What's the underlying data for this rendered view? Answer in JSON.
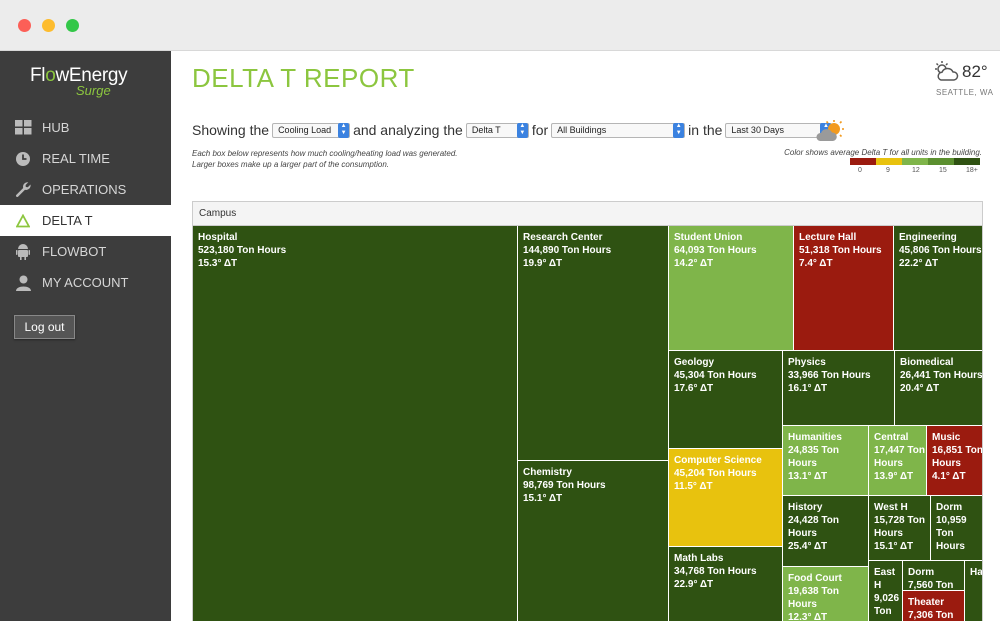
{
  "window": {
    "controls": [
      "close",
      "minimize",
      "zoom"
    ]
  },
  "sidebar": {
    "logo_prefix": "Fl",
    "logo_o": "o",
    "logo_suffix": "wEnergy",
    "logo_sub": "Surge",
    "items": [
      {
        "label": "HUB",
        "icon": "grid-icon",
        "active": false
      },
      {
        "label": "REAL TIME",
        "icon": "clock-icon",
        "active": false
      },
      {
        "label": "OPERATIONS",
        "icon": "wrench-icon",
        "active": false
      },
      {
        "label": "DELTA T",
        "icon": "delta-icon",
        "active": true
      },
      {
        "label": "FLOWBOT",
        "icon": "android-icon",
        "active": false
      },
      {
        "label": "MY ACCOUNT",
        "icon": "user-icon",
        "active": false
      }
    ],
    "logout_label": "Log out"
  },
  "header": {
    "title": "DELTA T REPORT",
    "weather": {
      "temp": "82°",
      "location": "SEATTLE, WA",
      "icon": "partly-cloudy-icon"
    }
  },
  "controls": {
    "showing_label": "Showing the",
    "load_value": "Cooling Load",
    "analyzing_label": "and analyzing the",
    "metric_value": "Delta T",
    "for_label": "for",
    "buildings_value": "All Buildings",
    "in_the_label": "in the",
    "period_value": "Last 30 Days",
    "weather_icon": "sun-cloud-icon"
  },
  "description": {
    "line1": "Each box below represents how much cooling/heating load was generated.",
    "line2": "Larger boxes make up a larger part of the consumption."
  },
  "legend": {
    "text": "Color shows average Delta T for all units in the building.",
    "colors": [
      "#9b1b0f",
      "#e8c20e",
      "#7fb54a",
      "#5b8f2f",
      "#2f5212"
    ],
    "ticks": [
      "0",
      "9",
      "12",
      "15",
      "18+"
    ]
  },
  "treemap": {
    "header": "Campus",
    "colors": {
      "dark": "#2f5212",
      "medium": "#5b8f2f",
      "light": "#7fb54a",
      "red": "#9b1b0f",
      "yellow": "#e8c20e"
    },
    "buildings": [
      {
        "name": "Hospital",
        "value": "523,180 Ton Hours",
        "delta": "15.3° ΔT",
        "color": "dark"
      },
      {
        "name": "Research Center",
        "value": "144,890 Ton Hours",
        "delta": "19.9° ΔT",
        "color": "dark"
      },
      {
        "name": "Chemistry",
        "value": "98,769 Ton Hours",
        "delta": "15.1° ΔT",
        "color": "dark"
      },
      {
        "name": "Student Union",
        "value": "64,093 Ton Hours",
        "delta": "14.2° ΔT",
        "color": "light"
      },
      {
        "name": "Lecture Hall",
        "value": "51,318 Ton Hours",
        "delta": "7.4° ΔT",
        "color": "red"
      },
      {
        "name": "Engineering",
        "value": "45,806 Ton Hours",
        "delta": "22.2° ΔT",
        "color": "dark"
      },
      {
        "name": "Geology",
        "value": "45,304 Ton Hours",
        "delta": "17.6° ΔT",
        "color": "dark"
      },
      {
        "name": "Physics",
        "value": "33,966 Ton Hours",
        "delta": "16.1° ΔT",
        "color": "dark"
      },
      {
        "name": "Biomedical",
        "value": "26,441 Ton Hours",
        "delta": "20.4° ΔT",
        "color": "dark"
      },
      {
        "name": "Computer Science",
        "value": "45,204 Ton Hours",
        "delta": "11.5° ΔT",
        "color": "yellow"
      },
      {
        "name": "Humanities",
        "value": "24,835 Ton Hours",
        "delta": "13.1° ΔT",
        "color": "light"
      },
      {
        "name": "Central",
        "value": "17,447 Ton Hours",
        "delta": "13.9° ΔT",
        "color": "light"
      },
      {
        "name": "Music",
        "value": "16,851 Ton Hours",
        "delta": "4.1° ΔT",
        "color": "red"
      },
      {
        "name": "History",
        "value": "24,428 Ton Hours",
        "delta": "25.4° ΔT",
        "color": "dark"
      },
      {
        "name": "West H",
        "value": "15,728 Ton Hours",
        "delta": "15.1° ΔT",
        "color": "dark"
      },
      {
        "name": "Dorm",
        "value": "10,959 Ton Hours",
        "delta": "",
        "color": "dark"
      },
      {
        "name": "Math Labs",
        "value": "34,768 Ton Hours",
        "delta": "22.9° ΔT",
        "color": "dark"
      },
      {
        "name": "Food Court",
        "value": "19,638 Ton Hours",
        "delta": "12.3° ΔT",
        "color": "light"
      },
      {
        "name": "East H",
        "value": "9,026 Ton",
        "delta": "",
        "color": "dark"
      },
      {
        "name": "Dorm",
        "value": "7,560 Ton",
        "delta": "",
        "color": "dark"
      },
      {
        "name": "Theater",
        "value": "7,306 Ton",
        "delta": "",
        "color": "red"
      },
      {
        "name": "Ha",
        "value": "",
        "delta": "",
        "color": "dark"
      }
    ]
  }
}
